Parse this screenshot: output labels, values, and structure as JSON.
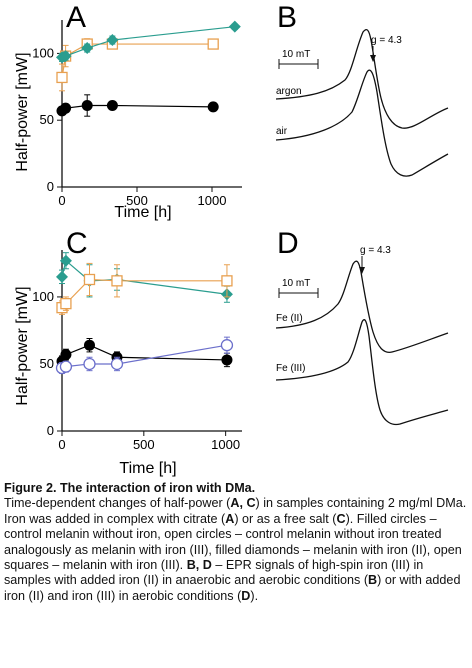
{
  "panels": [
    {
      "letter": "A",
      "chart_data": {
        "type": "scatter",
        "xlabel": "Time [h]",
        "ylabel": "Half-power [mW]",
        "xlim": [
          0,
          1200
        ],
        "ylim": [
          0,
          125
        ],
        "xticks": [
          0,
          500,
          1000
        ],
        "yticks": [
          0,
          50,
          100
        ],
        "series": [
          {
            "marker": "filled-circle",
            "color": "#000000",
            "x": [
              0,
              24,
              168,
              336,
              1008
            ],
            "y": [
              57,
              59,
              61,
              61,
              60
            ],
            "err": [
              3,
              3,
              8,
              2,
              2
            ]
          },
          {
            "marker": "open-square",
            "color": "#E8A050",
            "x": [
              0,
              24,
              168,
              336,
              1008
            ],
            "y": [
              82,
              98,
              107,
              107,
              107
            ],
            "err": [
              10,
              8,
              4,
              3,
              3
            ]
          },
          {
            "marker": "filled-diamond",
            "color": "#2A9D8F",
            "x": [
              0,
              24,
              168,
              336,
              1152
            ],
            "y": [
              97,
              98,
              104,
              110,
              120
            ],
            "err": [
              3,
              3,
              3,
              3,
              2
            ]
          }
        ]
      }
    },
    {
      "letter": "C",
      "chart_data": {
        "type": "scatter",
        "xlabel": "Time [h]",
        "ylabel": "Half-power [mW]",
        "xlim": [
          0,
          1100
        ],
        "ylim": [
          0,
          135
        ],
        "xticks": [
          0,
          500,
          1000
        ],
        "yticks": [
          0,
          50,
          100
        ],
        "series": [
          {
            "marker": "filled-circle",
            "color": "#000000",
            "x": [
              0,
              24,
              168,
              336,
              1008
            ],
            "y": [
              52,
              57,
              64,
              55,
              53
            ],
            "err": [
              4,
              4,
              5,
              4,
              5
            ]
          },
          {
            "marker": "open-circle",
            "color": "#6B6FCB",
            "x": [
              0,
              24,
              168,
              336,
              1008
            ],
            "y": [
              47,
              48,
              50,
              50,
              64
            ],
            "err": [
              4,
              4,
              5,
              5,
              6
            ]
          },
          {
            "marker": "filled-diamond",
            "color": "#2A9D8F",
            "x": [
              0,
              24,
              168,
              336,
              1008
            ],
            "y": [
              115,
              127,
              112,
              113,
              102
            ],
            "err": [
              5,
              6,
              12,
              8,
              6
            ]
          },
          {
            "marker": "open-square",
            "color": "#E8A050",
            "x": [
              0,
              24,
              168,
              336,
              1008
            ],
            "y": [
              92,
              95,
              113,
              112,
              112
            ],
            "err": [
              5,
              5,
              12,
              12,
              12
            ]
          }
        ]
      }
    }
  ],
  "epr": [
    {
      "letter": "B",
      "scale_label": "10 mT",
      "g_label": "g = 4.3",
      "trace_labels": [
        "argon",
        "air"
      ]
    },
    {
      "letter": "D",
      "scale_label": "10 mT",
      "g_label": "g = 4.3",
      "trace_labels": [
        "Fe (II)",
        "Fe (III)"
      ]
    }
  ],
  "caption": {
    "title": "Figure 2. The interaction of iron with DMa.",
    "segments": [
      {
        "t": "Time-dependent changes of half-power ("
      },
      {
        "t": "A, C",
        "b": true
      },
      {
        "t": ") in samples containing 2 mg/ml DMa. Iron was added in complex with citrate ("
      },
      {
        "t": "A",
        "b": true
      },
      {
        "t": ") or as a free salt ("
      },
      {
        "t": "C",
        "b": true
      },
      {
        "t": "). Filled circles – control melanin without iron, open circles – control melanin without iron treated analogously as melanin with iron (III), filled diamonds – melanin with iron (II), open squares – melanin with iron (III). "
      },
      {
        "t": "B, D",
        "b": true
      },
      {
        "t": " – EPR signals of high-spin iron (III) in samples with added iron (II) in anaerobic and aerobic conditions ("
      },
      {
        "t": "B",
        "b": true
      },
      {
        "t": ") or with added iron (II) and iron (III) in aerobic conditions ("
      },
      {
        "t": "D",
        "b": true
      },
      {
        "t": ")."
      }
    ]
  }
}
